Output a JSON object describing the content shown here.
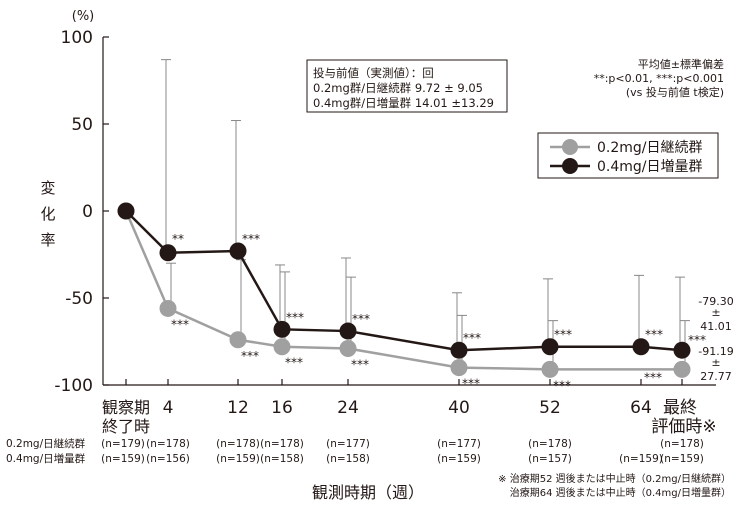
{
  "chart_data": {
    "type": "line",
    "ylabel": "変化率",
    "yunit": "(%)",
    "xlabel": "観測時期（週）",
    "ylim": [
      -100,
      100
    ],
    "yticks": [
      100,
      50,
      0,
      -50,
      -100
    ],
    "x_ticks": [
      {
        "week": 0,
        "label": "観察期\n終了時"
      },
      {
        "week": 4,
        "label": "4"
      },
      {
        "week": 12,
        "label": "12"
      },
      {
        "week": 16,
        "label": "16"
      },
      {
        "week": 24,
        "label": "24"
      },
      {
        "week": 40,
        "label": "40"
      },
      {
        "week": 52,
        "label": "52"
      },
      {
        "week": 64,
        "label": "64"
      },
      {
        "week": 68,
        "label": "最終\n評価時※"
      }
    ],
    "legend": [
      "0.2mg/日継続群",
      "0.4mg/日増量群"
    ],
    "colors": {
      "series1": "#a0a0a0",
      "series2": "#231815",
      "errorbar": "#888888"
    },
    "series": [
      {
        "name": "0.2mg/日継続群",
        "x": [
          0,
          4,
          12,
          16,
          24,
          40,
          52,
          68
        ],
        "values": [
          0,
          -56,
          -74,
          -78,
          -79,
          -90,
          -91,
          -91
        ],
        "error_low": [
          null,
          -30,
          -28,
          -35,
          -38,
          -60,
          -63,
          -63
        ],
        "sig": [
          "",
          "***",
          "***",
          "***",
          "***",
          "***",
          "***",
          "***"
        ]
      },
      {
        "name": "0.4mg/日増量群",
        "x": [
          0,
          4,
          12,
          16,
          24,
          40,
          52,
          64,
          68
        ],
        "values": [
          0,
          -24,
          -23,
          -68,
          -69,
          -80,
          -78,
          -78,
          -80
        ],
        "error_high": [
          null,
          87,
          52,
          -31,
          -27,
          -47,
          -39,
          -37,
          -38
        ],
        "sig": [
          "",
          "**",
          "***",
          "***",
          "***",
          "***",
          "***",
          "***",
          "***"
        ]
      }
    ],
    "box_text": [
      "投与前値（実測値）：回",
      "0.2mg群/日継続群 9.72 ± 9.05",
      "0.4mg群/日増量群 14.01 ±13.29"
    ],
    "stats_text": [
      "平均値±標準偏差",
      "**:p<0.01, ***:p<0.001",
      "(vs 投与前値 t検定)"
    ],
    "final_vals": [
      "-79.30",
      "±",
      "41.01",
      "-91.19",
      "±",
      "27.77"
    ],
    "n_label1": "0.2mg/日継続群",
    "n_label2": "0.4mg/日増量群",
    "n_row1": [
      {
        "week": 0,
        "text": "(n=179)"
      },
      {
        "week": 4,
        "text": "(n=178)"
      },
      {
        "week": 12,
        "text": "(n=178)"
      },
      {
        "week": 16,
        "text": "(n=178)"
      },
      {
        "week": 24,
        "text": "(n=177)"
      },
      {
        "week": 40,
        "text": "(n=177)"
      },
      {
        "week": 52,
        "text": "(n=178)"
      },
      {
        "week": 68,
        "text": "(n=178)"
      }
    ],
    "n_row2": [
      {
        "week": 0,
        "text": "(n=159)"
      },
      {
        "week": 4,
        "text": "(n=156)"
      },
      {
        "week": 12,
        "text": "(n=159)"
      },
      {
        "week": 16,
        "text": "(n=158)"
      },
      {
        "week": 24,
        "text": "(n=158)"
      },
      {
        "week": 40,
        "text": "(n=159)"
      },
      {
        "week": 52,
        "text": "(n=157)"
      },
      {
        "week": 64,
        "text": "(n=159)"
      },
      {
        "week": 68,
        "text": "(n=159)"
      }
    ],
    "footnote": [
      "※ 治療期52 週後または中止時（0.2mg/日継続群）",
      "治療期64 週後または中止時（0.4mg/日増量群）"
    ]
  }
}
